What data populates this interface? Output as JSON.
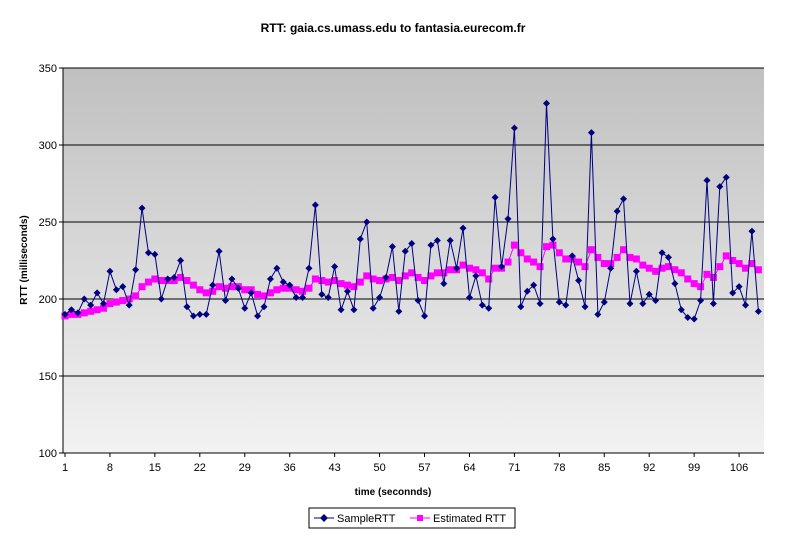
{
  "chart_data": {
    "type": "line",
    "title": "RTT: gaia.cs.umass.edu to fantasia.eurecom.fr",
    "xlabel": "time (seconnds)",
    "ylabel": "RTT (milliseconds)",
    "ylim": [
      100,
      350
    ],
    "yticks": [
      100,
      150,
      200,
      250,
      300,
      350
    ],
    "xticks": [
      1,
      8,
      15,
      22,
      29,
      36,
      43,
      50,
      57,
      64,
      71,
      78,
      85,
      92,
      99,
      106
    ],
    "grid": "horizontal major gridlines",
    "legend": "bottom",
    "colors": {
      "plot_top": "#c0c0c0",
      "plot_bottom": "#f2f2f2",
      "sample": "#000080",
      "estimated": "#ff00ff"
    },
    "series": [
      {
        "name": "SampleRTT",
        "marker": "diamond",
        "values": [
          190,
          193,
          191,
          200,
          196,
          204,
          197,
          218,
          206,
          208,
          196,
          219,
          259,
          230,
          229,
          200,
          213,
          214,
          225,
          195,
          189,
          190,
          190,
          209,
          231,
          199,
          213,
          207,
          194,
          204,
          189,
          195,
          213,
          220,
          211,
          209,
          201,
          201,
          220,
          261,
          203,
          201,
          221,
          193,
          205,
          193,
          239,
          250,
          194,
          201,
          214,
          234,
          192,
          231,
          236,
          199,
          189,
          235,
          238,
          210,
          238,
          220,
          246,
          201,
          215,
          196,
          194,
          266,
          221,
          252,
          311,
          195,
          205,
          209,
          197,
          327,
          239,
          198,
          196,
          228,
          212,
          195,
          308,
          190,
          198,
          220,
          257,
          265,
          197,
          218,
          197,
          203,
          199,
          230,
          227,
          210,
          193,
          188,
          187,
          199,
          277,
          197,
          273,
          279,
          204,
          208,
          196,
          244,
          192
        ]
      },
      {
        "name": "Estimated RTT",
        "marker": "square",
        "values": [
          189,
          190,
          190,
          191,
          192,
          193,
          194,
          197,
          198,
          199,
          200,
          202,
          208,
          211,
          213,
          212,
          212,
          212,
          214,
          212,
          209,
          206,
          204,
          205,
          208,
          207,
          208,
          208,
          206,
          206,
          203,
          202,
          204,
          206,
          207,
          207,
          206,
          205,
          207,
          213,
          212,
          211,
          212,
          210,
          209,
          208,
          211,
          215,
          213,
          212,
          213,
          214,
          212,
          215,
          217,
          214,
          212,
          215,
          217,
          217,
          219,
          219,
          222,
          220,
          219,
          217,
          213,
          220,
          220,
          224,
          235,
          230,
          226,
          224,
          221,
          234,
          235,
          230,
          226,
          226,
          224,
          221,
          232,
          227,
          223,
          223,
          227,
          232,
          227,
          226,
          222,
          220,
          218,
          220,
          221,
          219,
          217,
          213,
          210,
          208,
          216,
          214,
          221,
          228,
          225,
          223,
          220,
          223,
          219
        ]
      }
    ]
  }
}
